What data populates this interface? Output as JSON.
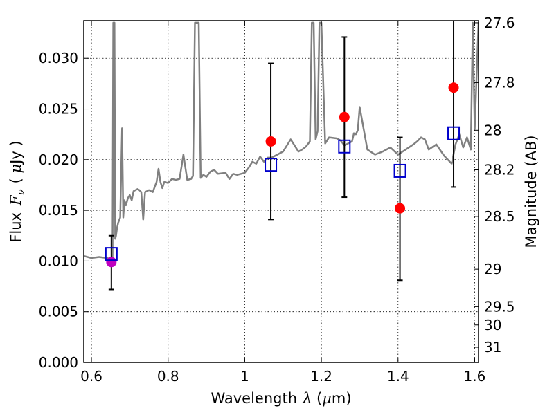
{
  "chart_data": {
    "type": "scatter",
    "xlabel_prefix": "Wavelength",
    "xlabel_symbol": "λ",
    "xlabel_unit_open": " (",
    "xlabel_unit_mu": "μ",
    "xlabel_unit_rest": "m)",
    "ylabel_prefix": "Flux",
    "ylabel_symbol": "F",
    "ylabel_subscript": "ν",
    "ylabel_unit_open": "( ",
    "ylabel_unit_mu": "μ",
    "ylabel_unit_rest": "Jy )",
    "ylabel_right": "Magnitude (AB)",
    "xlim": [
      0.58,
      1.61
    ],
    "ylim": [
      0.0,
      0.0337
    ],
    "x_ticks": [
      0.6,
      0.8,
      1.0,
      1.2,
      1.4,
      1.6
    ],
    "x_tick_labels": [
      "0.6",
      "0.8",
      "1",
      "1.2",
      "1.4",
      "1.6"
    ],
    "y_ticks": [
      0.0,
      0.005,
      0.01,
      0.015,
      0.02,
      0.025,
      0.03
    ],
    "y_tick_labels": [
      "0.000",
      "0.005",
      "0.010",
      "0.015",
      "0.020",
      "0.025",
      "0.030"
    ],
    "right_ticks": [
      {
        "label": "27.6",
        "flux": 0.0335
      },
      {
        "label": "27.8",
        "flux": 0.0276
      },
      {
        "label": "28",
        "flux": 0.0229
      },
      {
        "label": "28.2",
        "flux": 0.019
      },
      {
        "label": "28.5",
        "flux": 0.0144
      },
      {
        "label": "29",
        "flux": 0.0092
      },
      {
        "label": "29.5",
        "flux": 0.0055
      },
      {
        "label": "30",
        "flux": 0.0037
      },
      {
        "label": "31",
        "flux": 0.0015
      }
    ],
    "grid": true,
    "colors": {
      "template": "#808080",
      "observed": "#ff0000",
      "observed_optical": "#bf00bf",
      "model": "#0000cc",
      "errorbar": "#000000"
    },
    "template_sed": {
      "x": [
        0.58,
        0.6,
        0.62,
        0.64,
        0.65,
        0.655,
        0.657,
        0.66,
        0.662,
        0.664,
        0.667,
        0.67,
        0.675,
        0.68,
        0.683,
        0.686,
        0.69,
        0.695,
        0.7,
        0.705,
        0.71,
        0.715,
        0.72,
        0.725,
        0.73,
        0.735,
        0.74,
        0.75,
        0.76,
        0.77,
        0.775,
        0.78,
        0.785,
        0.79,
        0.8,
        0.81,
        0.82,
        0.83,
        0.84,
        0.85,
        0.86,
        0.865,
        0.87,
        0.88,
        0.885,
        0.8865,
        0.888,
        0.892,
        0.9,
        0.91,
        0.92,
        0.93,
        0.95,
        0.96,
        0.97,
        0.98,
        1.0,
        1.01,
        1.02,
        1.03,
        1.04,
        1.05,
        1.06,
        1.07,
        1.08,
        1.1,
        1.12,
        1.14,
        1.15,
        1.16,
        1.17,
        1.175,
        1.18,
        1.185,
        1.19,
        1.195,
        1.2,
        1.21,
        1.22,
        1.24,
        1.25,
        1.26,
        1.28,
        1.285,
        1.29,
        1.295,
        1.3,
        1.32,
        1.34,
        1.36,
        1.38,
        1.4,
        1.42,
        1.44,
        1.45,
        1.46,
        1.47,
        1.48,
        1.5,
        1.52,
        1.54,
        1.55,
        1.56,
        1.57,
        1.58,
        1.59,
        1.595,
        1.6,
        1.61
      ],
      "y": [
        0.0105,
        0.0103,
        0.0104,
        0.0103,
        0.0102,
        0.0105,
        0.0335,
        0.0335,
        0.0122,
        0.0125,
        0.0133,
        0.0138,
        0.0143,
        0.0231,
        0.0143,
        0.016,
        0.0155,
        0.0162,
        0.0165,
        0.016,
        0.0169,
        0.017,
        0.0171,
        0.017,
        0.0168,
        0.0141,
        0.0168,
        0.017,
        0.0168,
        0.0178,
        0.0191,
        0.0178,
        0.0172,
        0.0178,
        0.0177,
        0.0181,
        0.018,
        0.0181,
        0.0205,
        0.018,
        0.0181,
        0.0184,
        0.0335,
        0.0335,
        0.0182,
        0.0185,
        0.0183,
        0.0185,
        0.0183,
        0.0188,
        0.019,
        0.0186,
        0.0187,
        0.0181,
        0.0186,
        0.0185,
        0.0187,
        0.0192,
        0.0198,
        0.0196,
        0.0203,
        0.0198,
        0.0202,
        0.0202,
        0.0204,
        0.0208,
        0.022,
        0.0208,
        0.021,
        0.0213,
        0.0218,
        0.0335,
        0.0335,
        0.022,
        0.0228,
        0.0335,
        0.0335,
        0.0216,
        0.0222,
        0.0221,
        0.0219,
        0.0214,
        0.0218,
        0.0226,
        0.0225,
        0.0229,
        0.0252,
        0.021,
        0.0205,
        0.0208,
        0.0212,
        0.0205,
        0.021,
        0.0215,
        0.0218,
        0.0222,
        0.022,
        0.021,
        0.0215,
        0.0204,
        0.0196,
        0.0215,
        0.0225,
        0.0212,
        0.0222,
        0.021,
        0.0335,
        0.023,
        0.0335
      ]
    },
    "observed_points": [
      {
        "x": 0.652,
        "y": 0.0099,
        "err_low": 0.0072,
        "err_high": 0.0125,
        "optical": true
      },
      {
        "x": 1.068,
        "y": 0.0218,
        "err_low": 0.0141,
        "err_high": 0.0295,
        "optical": false
      },
      {
        "x": 1.26,
        "y": 0.0242,
        "err_low": 0.0163,
        "err_high": 0.0321,
        "optical": false
      },
      {
        "x": 1.405,
        "y": 0.0152,
        "err_low": 0.0081,
        "err_high": 0.0222,
        "optical": false
      },
      {
        "x": 1.545,
        "y": 0.0271,
        "err_low": 0.0173,
        "err_high": 0.0337,
        "optical": false
      }
    ],
    "model_points": [
      {
        "x": 0.652,
        "y": 0.0107
      },
      {
        "x": 1.068,
        "y": 0.0195
      },
      {
        "x": 1.26,
        "y": 0.0213
      },
      {
        "x": 1.405,
        "y": 0.0189
      },
      {
        "x": 1.545,
        "y": 0.0226
      }
    ]
  }
}
